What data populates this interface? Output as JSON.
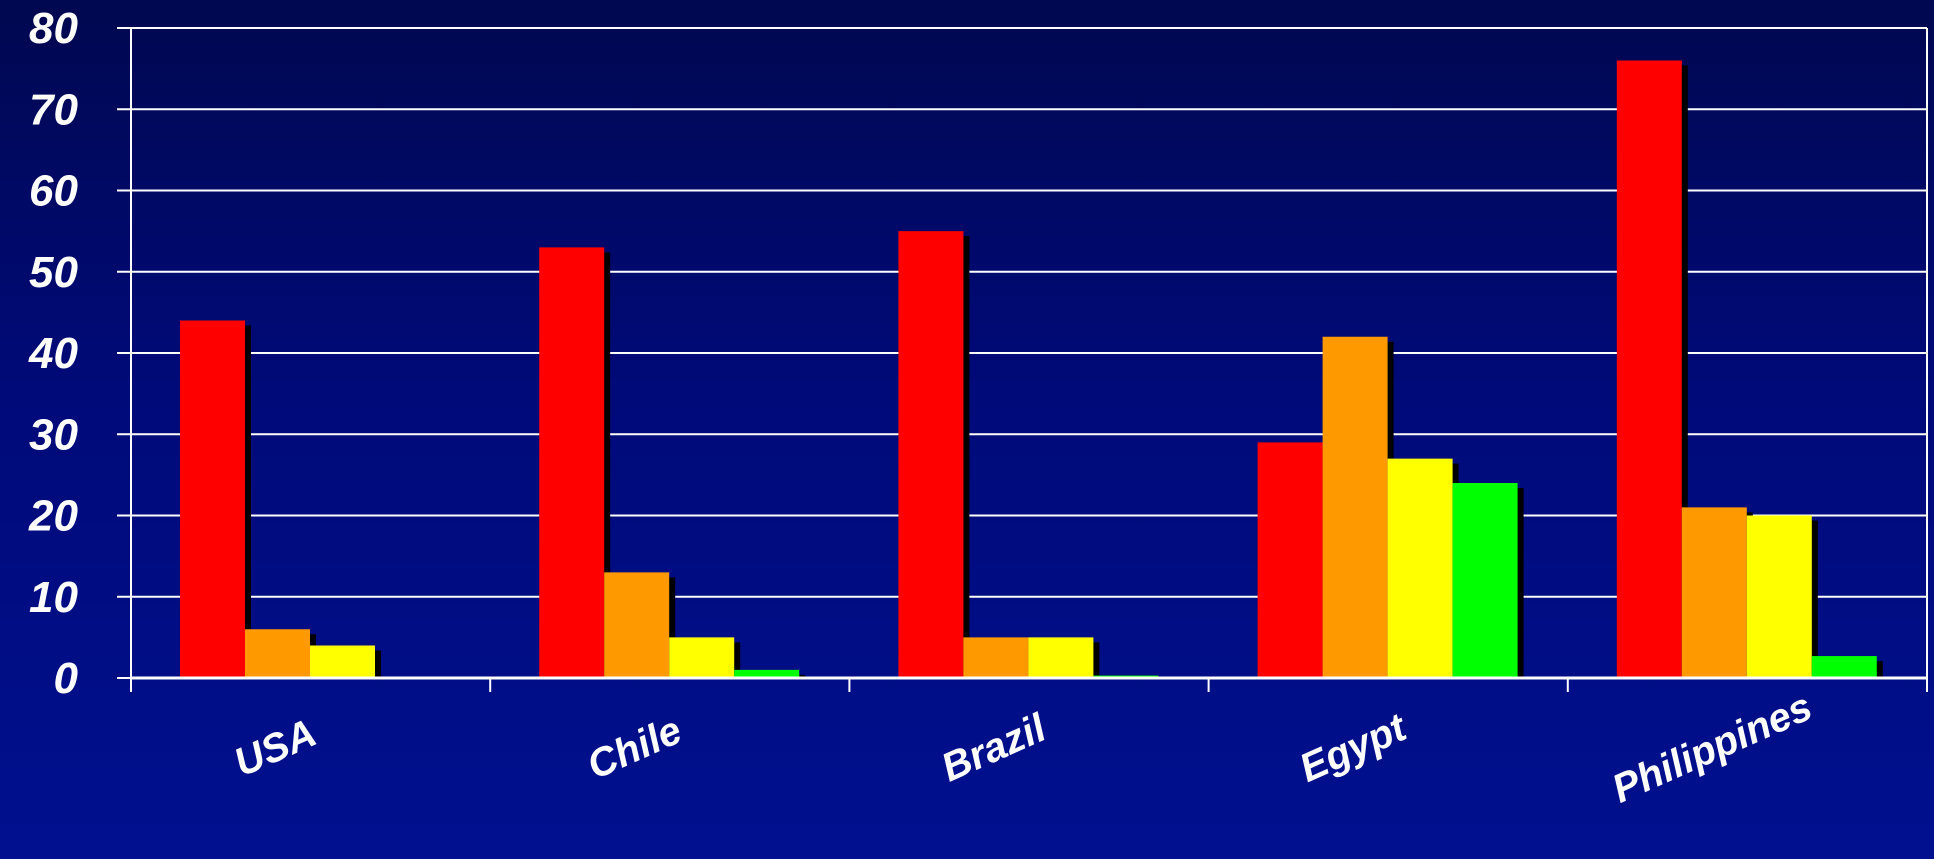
{
  "chart_data": {
    "type": "bar",
    "title": "",
    "xlabel": "",
    "ylabel": "",
    "ylim": [
      0,
      80
    ],
    "yticks": [
      0,
      10,
      20,
      30,
      40,
      50,
      60,
      70,
      80
    ],
    "grid": true,
    "legend": "none",
    "categories": [
      "USA",
      "Chile",
      "Brazil",
      "Egypt",
      "Philippines"
    ],
    "series": [
      {
        "color": "#ff0000",
        "values": [
          44,
          53,
          55,
          29,
          76
        ]
      },
      {
        "color": "#ff9900",
        "values": [
          6,
          13,
          5,
          42,
          21
        ]
      },
      {
        "color": "#ffff00",
        "values": [
          4,
          5,
          5,
          27,
          20
        ]
      },
      {
        "color": "#00ff00",
        "values": [
          0,
          1,
          0.3,
          24,
          2.7
        ]
      }
    ]
  }
}
